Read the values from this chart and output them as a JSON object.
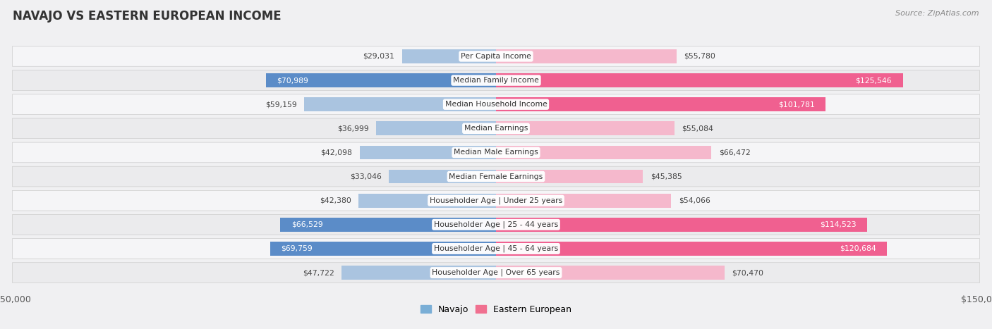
{
  "title": "NAVAJO VS EASTERN EUROPEAN INCOME",
  "source": "Source: ZipAtlas.com",
  "categories": [
    "Per Capita Income",
    "Median Family Income",
    "Median Household Income",
    "Median Earnings",
    "Median Male Earnings",
    "Median Female Earnings",
    "Householder Age | Under 25 years",
    "Householder Age | 25 - 44 years",
    "Householder Age | 45 - 64 years",
    "Householder Age | Over 65 years"
  ],
  "navajo_values": [
    29031,
    70989,
    59159,
    36999,
    42098,
    33046,
    42380,
    66529,
    69759,
    47722
  ],
  "eastern_values": [
    55780,
    125546,
    101781,
    55084,
    66472,
    45385,
    54066,
    114523,
    120684,
    70470
  ],
  "navajo_labels": [
    "$29,031",
    "$70,989",
    "$59,159",
    "$36,999",
    "$42,098",
    "$33,046",
    "$42,380",
    "$66,529",
    "$69,759",
    "$47,722"
  ],
  "eastern_labels": [
    "$55,780",
    "$125,546",
    "$101,781",
    "$55,084",
    "$66,472",
    "$45,385",
    "$54,066",
    "$114,523",
    "$120,684",
    "$70,470"
  ],
  "navajo_color_light": "#aac4e0",
  "navajo_color_dark": "#5b8cc8",
  "eastern_color_light": "#f5b8cc",
  "eastern_color_dark": "#f06090",
  "max_value": 150000,
  "legend_navajo_color": "#7aaed6",
  "legend_eastern_color": "#f07090",
  "row_colors": [
    "#f5f5f7",
    "#ebebed"
  ],
  "bg_color": "#f0f0f2"
}
